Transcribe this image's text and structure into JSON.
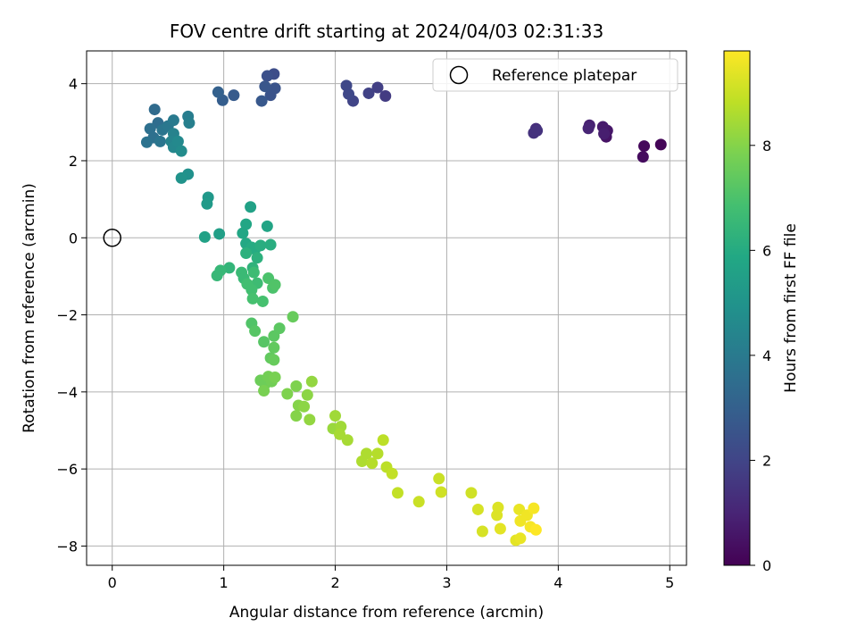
{
  "chart_data": {
    "type": "scatter",
    "title": "FOV centre drift starting at 2024/04/03 02:31:33",
    "xlabel": "Angular distance from reference (arcmin)",
    "ylabel": "Rotation from reference (arcmin)",
    "xlim": [
      -0.23,
      5.15
    ],
    "ylim": [
      -8.5,
      4.85
    ],
    "xticks": [
      0,
      1,
      2,
      3,
      4,
      5
    ],
    "yticks": [
      4,
      2,
      0,
      -2,
      -4,
      -6,
      -8
    ],
    "grid": true,
    "legend": {
      "placement": "top-right",
      "entries": [
        "Reference platepar"
      ]
    },
    "reference_point": {
      "label": "Reference platepar",
      "x": 0,
      "y": 0
    },
    "colorbar": {
      "label": "Hours from first FF file",
      "colormap": "viridis",
      "range": [
        0,
        9.8
      ],
      "ticks": [
        0,
        2,
        4,
        6,
        8
      ]
    },
    "series": [
      {
        "points": [
          {
            "x": 4.92,
            "y": 2.42,
            "c": 0.1
          },
          {
            "x": 4.77,
            "y": 2.38,
            "c": 0.2
          },
          {
            "x": 4.76,
            "y": 2.1,
            "c": 0.3
          },
          {
            "x": 4.43,
            "y": 2.62,
            "c": 0.5
          },
          {
            "x": 4.44,
            "y": 2.78,
            "c": 0.6
          },
          {
            "x": 4.4,
            "y": 2.88,
            "c": 0.7
          },
          {
            "x": 4.41,
            "y": 2.7,
            "c": 0.8
          },
          {
            "x": 4.28,
            "y": 2.92,
            "c": 0.9
          },
          {
            "x": 4.27,
            "y": 2.84,
            "c": 1.0
          },
          {
            "x": 3.8,
            "y": 2.83,
            "c": 1.3
          },
          {
            "x": 3.78,
            "y": 2.72,
            "c": 1.4
          },
          {
            "x": 3.81,
            "y": 2.78,
            "c": 1.4
          },
          {
            "x": 2.45,
            "y": 3.68,
            "c": 1.7
          },
          {
            "x": 2.38,
            "y": 3.9,
            "c": 1.8
          },
          {
            "x": 2.3,
            "y": 3.75,
            "c": 1.9
          },
          {
            "x": 2.16,
            "y": 3.55,
            "c": 2.0
          },
          {
            "x": 2.12,
            "y": 3.73,
            "c": 2.1
          },
          {
            "x": 2.1,
            "y": 3.95,
            "c": 2.1
          },
          {
            "x": 1.45,
            "y": 4.25,
            "c": 2.3
          },
          {
            "x": 1.39,
            "y": 4.2,
            "c": 2.4
          },
          {
            "x": 1.46,
            "y": 3.88,
            "c": 2.5
          },
          {
            "x": 1.42,
            "y": 3.7,
            "c": 2.5
          },
          {
            "x": 1.37,
            "y": 3.93,
            "c": 2.6
          },
          {
            "x": 1.34,
            "y": 3.55,
            "c": 2.7
          },
          {
            "x": 1.09,
            "y": 3.7,
            "c": 2.8
          },
          {
            "x": 0.99,
            "y": 3.57,
            "c": 2.9
          },
          {
            "x": 0.95,
            "y": 3.78,
            "c": 3.0
          },
          {
            "x": 0.38,
            "y": 3.33,
            "c": 3.4
          },
          {
            "x": 0.41,
            "y": 2.98,
            "c": 3.5
          },
          {
            "x": 0.34,
            "y": 2.83,
            "c": 3.6
          },
          {
            "x": 0.37,
            "y": 2.6,
            "c": 3.6
          },
          {
            "x": 0.31,
            "y": 2.48,
            "c": 3.7
          },
          {
            "x": 0.43,
            "y": 2.5,
            "c": 3.8
          },
          {
            "x": 0.45,
            "y": 2.8,
            "c": 3.8
          },
          {
            "x": 0.5,
            "y": 2.9,
            "c": 3.9
          },
          {
            "x": 0.55,
            "y": 3.05,
            "c": 4.0
          },
          {
            "x": 0.68,
            "y": 3.15,
            "c": 4.1
          },
          {
            "x": 0.69,
            "y": 2.98,
            "c": 4.2
          },
          {
            "x": 0.55,
            "y": 2.7,
            "c": 4.3
          },
          {
            "x": 0.53,
            "y": 2.5,
            "c": 4.4
          },
          {
            "x": 0.55,
            "y": 2.35,
            "c": 4.5
          },
          {
            "x": 0.59,
            "y": 2.5,
            "c": 4.6
          },
          {
            "x": 0.62,
            "y": 2.25,
            "c": 4.7
          },
          {
            "x": 0.68,
            "y": 1.65,
            "c": 4.9
          },
          {
            "x": 0.62,
            "y": 1.55,
            "c": 5.0
          },
          {
            "x": 0.86,
            "y": 1.05,
            "c": 5.2
          },
          {
            "x": 0.85,
            "y": 0.88,
            "c": 5.3
          },
          {
            "x": 0.96,
            "y": 0.1,
            "c": 5.5
          },
          {
            "x": 0.83,
            "y": 0.02,
            "c": 5.6
          },
          {
            "x": 1.24,
            "y": 0.8,
            "c": 5.6
          },
          {
            "x": 1.39,
            "y": 0.3,
            "c": 5.7
          },
          {
            "x": 1.17,
            "y": 0.12,
            "c": 5.8
          },
          {
            "x": 1.2,
            "y": 0.35,
            "c": 5.8
          },
          {
            "x": 1.2,
            "y": -0.15,
            "c": 5.9
          },
          {
            "x": 1.25,
            "y": -0.25,
            "c": 6.0
          },
          {
            "x": 1.28,
            "y": -0.3,
            "c": 6.0
          },
          {
            "x": 1.33,
            "y": -0.2,
            "c": 6.1
          },
          {
            "x": 1.42,
            "y": -0.18,
            "c": 6.1
          },
          {
            "x": 1.2,
            "y": -0.4,
            "c": 6.2
          },
          {
            "x": 1.3,
            "y": -0.52,
            "c": 6.2
          },
          {
            "x": 1.26,
            "y": -0.78,
            "c": 6.3
          },
          {
            "x": 1.05,
            "y": -0.78,
            "c": 6.4
          },
          {
            "x": 0.97,
            "y": -0.85,
            "c": 6.5
          },
          {
            "x": 0.94,
            "y": -0.98,
            "c": 6.5
          },
          {
            "x": 1.16,
            "y": -0.9,
            "c": 6.6
          },
          {
            "x": 1.18,
            "y": -1.05,
            "c": 6.6
          },
          {
            "x": 1.27,
            "y": -0.9,
            "c": 6.7
          },
          {
            "x": 1.3,
            "y": -1.18,
            "c": 6.7
          },
          {
            "x": 1.21,
            "y": -1.2,
            "c": 6.8
          },
          {
            "x": 1.25,
            "y": -1.35,
            "c": 6.8
          },
          {
            "x": 1.26,
            "y": -1.58,
            "c": 6.9
          },
          {
            "x": 1.35,
            "y": -1.65,
            "c": 6.9
          },
          {
            "x": 1.4,
            "y": -1.05,
            "c": 7.0
          },
          {
            "x": 1.44,
            "y": -1.3,
            "c": 7.0
          },
          {
            "x": 1.46,
            "y": -1.22,
            "c": 7.1
          },
          {
            "x": 1.25,
            "y": -2.22,
            "c": 7.1
          },
          {
            "x": 1.28,
            "y": -2.42,
            "c": 7.2
          },
          {
            "x": 1.36,
            "y": -2.7,
            "c": 7.2
          },
          {
            "x": 1.45,
            "y": -2.55,
            "c": 7.3
          },
          {
            "x": 1.5,
            "y": -2.35,
            "c": 7.3
          },
          {
            "x": 1.45,
            "y": -2.85,
            "c": 7.4
          },
          {
            "x": 1.42,
            "y": -3.12,
            "c": 7.4
          },
          {
            "x": 1.45,
            "y": -3.17,
            "c": 7.5
          },
          {
            "x": 1.62,
            "y": -2.05,
            "c": 7.5
          },
          {
            "x": 1.33,
            "y": -3.7,
            "c": 7.6
          },
          {
            "x": 1.37,
            "y": -3.8,
            "c": 7.6
          },
          {
            "x": 1.4,
            "y": -3.6,
            "c": 7.7
          },
          {
            "x": 1.43,
            "y": -3.73,
            "c": 7.7
          },
          {
            "x": 1.36,
            "y": -3.97,
            "c": 7.8
          },
          {
            "x": 1.46,
            "y": -3.62,
            "c": 7.8
          },
          {
            "x": 1.57,
            "y": -4.05,
            "c": 7.9
          },
          {
            "x": 1.65,
            "y": -3.85,
            "c": 7.9
          },
          {
            "x": 1.67,
            "y": -4.35,
            "c": 8.0
          },
          {
            "x": 1.65,
            "y": -4.62,
            "c": 8.0
          },
          {
            "x": 1.72,
            "y": -4.38,
            "c": 8.1
          },
          {
            "x": 1.75,
            "y": -4.08,
            "c": 8.1
          },
          {
            "x": 1.79,
            "y": -3.73,
            "c": 8.2
          },
          {
            "x": 1.77,
            "y": -4.72,
            "c": 8.2
          },
          {
            "x": 1.98,
            "y": -4.95,
            "c": 8.3
          },
          {
            "x": 2.0,
            "y": -4.62,
            "c": 8.4
          },
          {
            "x": 2.05,
            "y": -4.9,
            "c": 8.4
          },
          {
            "x": 2.04,
            "y": -5.1,
            "c": 8.5
          },
          {
            "x": 2.11,
            "y": -5.25,
            "c": 8.5
          },
          {
            "x": 2.24,
            "y": -5.8,
            "c": 8.6
          },
          {
            "x": 2.28,
            "y": -5.6,
            "c": 8.6
          },
          {
            "x": 2.33,
            "y": -5.85,
            "c": 8.7
          },
          {
            "x": 2.38,
            "y": -5.6,
            "c": 8.7
          },
          {
            "x": 2.43,
            "y": -5.25,
            "c": 8.8
          },
          {
            "x": 2.46,
            "y": -5.95,
            "c": 8.8
          },
          {
            "x": 2.51,
            "y": -6.12,
            "c": 8.9
          },
          {
            "x": 2.56,
            "y": -6.62,
            "c": 8.9
          },
          {
            "x": 2.75,
            "y": -6.85,
            "c": 9.0
          },
          {
            "x": 2.93,
            "y": -6.25,
            "c": 9.0
          },
          {
            "x": 2.95,
            "y": -6.6,
            "c": 9.1
          },
          {
            "x": 3.22,
            "y": -6.62,
            "c": 9.1
          },
          {
            "x": 3.28,
            "y": -7.05,
            "c": 9.2
          },
          {
            "x": 3.32,
            "y": -7.62,
            "c": 9.2
          },
          {
            "x": 3.46,
            "y": -7.0,
            "c": 9.3
          },
          {
            "x": 3.45,
            "y": -7.2,
            "c": 9.3
          },
          {
            "x": 3.48,
            "y": -7.55,
            "c": 9.4
          },
          {
            "x": 3.62,
            "y": -7.85,
            "c": 9.4
          },
          {
            "x": 3.66,
            "y": -7.8,
            "c": 9.5
          },
          {
            "x": 3.65,
            "y": -7.05,
            "c": 9.5
          },
          {
            "x": 3.66,
            "y": -7.35,
            "c": 9.6
          },
          {
            "x": 3.72,
            "y": -7.2,
            "c": 9.6
          },
          {
            "x": 3.78,
            "y": -7.02,
            "c": 9.7
          },
          {
            "x": 3.75,
            "y": -7.5,
            "c": 9.7
          },
          {
            "x": 3.8,
            "y": -7.58,
            "c": 9.8
          }
        ]
      }
    ]
  }
}
